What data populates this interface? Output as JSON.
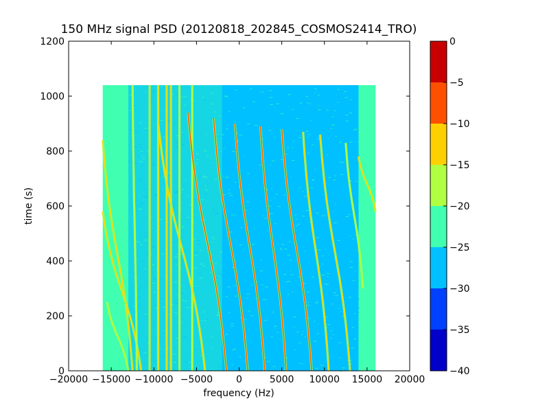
{
  "chart_data": {
    "type": "heatmap",
    "title": "150 MHz signal PSD (20120818_202845_COSMOS2414_TRO)",
    "xlabel": "frequency (Hz)",
    "ylabel": "time (s)",
    "xlim": [
      -20000,
      20000
    ],
    "ylim": [
      0,
      1200
    ],
    "xticks": [
      -20000,
      -15000,
      -10000,
      -5000,
      0,
      5000,
      10000,
      15000,
      20000
    ],
    "xtick_labels": [
      "−20000",
      "−15000",
      "−10000",
      "−5000",
      "0",
      "5000",
      "10000",
      "15000",
      "20000"
    ],
    "yticks": [
      0,
      200,
      400,
      600,
      800,
      1000,
      1200
    ],
    "ytick_labels": [
      "0",
      "200",
      "400",
      "600",
      "800",
      "1000",
      "1200"
    ],
    "data_extent": {
      "freq": [
        -16000,
        16000
      ],
      "time": [
        0,
        1040
      ]
    },
    "colorbar": {
      "vmin": -40,
      "vmax": 0,
      "ticks": [
        0,
        -5,
        -10,
        -15,
        -20,
        -25,
        -30,
        -35,
        -40
      ],
      "tick_labels": [
        "0",
        "−5",
        "−10",
        "−15",
        "−20",
        "−25",
        "−30",
        "−35",
        "−40"
      ],
      "bins": [
        {
          "range": [
            -40,
            -35
          ],
          "color": "#0000c8"
        },
        {
          "range": [
            -35,
            -30
          ],
          "color": "#0040ff"
        },
        {
          "range": [
            -30,
            -25
          ],
          "color": "#00c0ff"
        },
        {
          "range": [
            -25,
            -20
          ],
          "color": "#40ffb0"
        },
        {
          "range": [
            -20,
            -15
          ],
          "color": "#b0ff40"
        },
        {
          "range": [
            -15,
            -10
          ],
          "color": "#ffd000"
        },
        {
          "range": [
            -10,
            -5
          ],
          "color": "#ff5000"
        },
        {
          "range": [
            -5,
            0
          ],
          "color": "#c80000"
        }
      ]
    },
    "level_colors": {
      "edge": "#40ffb0",
      "mid": "#00c0ff",
      "line_weak": "#b0ff40",
      "line_mid": "#ffd000",
      "line_strong": "#ff5000"
    },
    "traces": [
      {
        "f0": -16000,
        "t0": 840,
        "f1": -12500,
        "t1": 0,
        "level": "mid"
      },
      {
        "f0": -16000,
        "t0": 580,
        "f1": -11500,
        "t1": 0,
        "level": "mid"
      },
      {
        "f0": -15500,
        "t0": 250,
        "f1": -13000,
        "t1": 0,
        "level": "weak"
      },
      {
        "f0": -12500,
        "t0": 1040,
        "f1": -12000,
        "t1": 0,
        "level": "weak"
      },
      {
        "f0": -10500,
        "t0": 1040,
        "f1": -10500,
        "t1": 0,
        "level": "mid"
      },
      {
        "f0": -9500,
        "t0": 1040,
        "f1": -9500,
        "t1": 0,
        "level": "mid"
      },
      {
        "f0": -8500,
        "t0": 1040,
        "f1": -8500,
        "t1": 0,
        "level": "mid"
      },
      {
        "f0": -8000,
        "t0": 1040,
        "f1": -8000,
        "t1": 0,
        "level": "mid"
      },
      {
        "f0": -7000,
        "t0": 1040,
        "f1": -7000,
        "t1": 0,
        "level": "weak"
      },
      {
        "f0": -5500,
        "t0": 1040,
        "f1": -5500,
        "t1": 0,
        "level": "weak"
      },
      {
        "f0": -9500,
        "t0": 900,
        "f1": -4000,
        "t1": 0,
        "level": "mid"
      },
      {
        "f0": -6000,
        "t0": 940,
        "f1": -1500,
        "t1": 0,
        "level": "strong"
      },
      {
        "f0": -3000,
        "t0": 920,
        "f1": 1000,
        "t1": 0,
        "level": "strong"
      },
      {
        "f0": -500,
        "t0": 900,
        "f1": 3000,
        "t1": 0,
        "level": "strong"
      },
      {
        "f0": 2500,
        "t0": 890,
        "f1": 5500,
        "t1": 0,
        "level": "strong"
      },
      {
        "f0": 5000,
        "t0": 880,
        "f1": 8500,
        "t1": 0,
        "level": "strong"
      },
      {
        "f0": 7500,
        "t0": 870,
        "f1": 10500,
        "t1": 0,
        "level": "mid"
      },
      {
        "f0": 9500,
        "t0": 860,
        "f1": 13000,
        "t1": 0,
        "level": "mid"
      },
      {
        "f0": 12500,
        "t0": 830,
        "f1": 14500,
        "t1": 300,
        "level": "weak"
      },
      {
        "f0": 14000,
        "t0": 780,
        "f1": 16000,
        "t1": 580,
        "level": "mid"
      }
    ]
  }
}
